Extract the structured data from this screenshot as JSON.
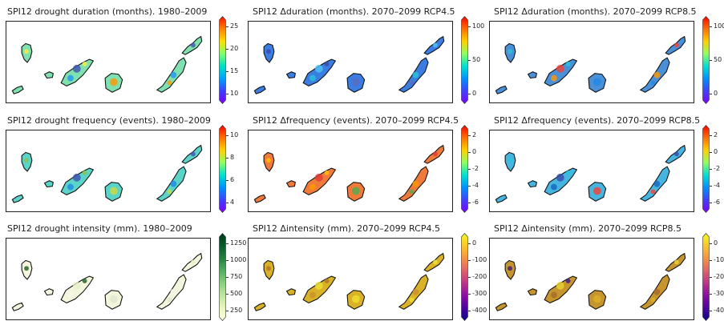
{
  "panels": [
    {
      "title": "SPI12 drought duration (months). 1980–2009",
      "ticks": [
        "25",
        "20",
        "15",
        "10"
      ],
      "cmap": "rainbow",
      "bg": "#7fe0b0",
      "spots": [
        "#3f51b5",
        "#2196f3",
        "#ffeb3b",
        "#ff9800"
      ]
    },
    {
      "title": "SPI12 Δduration (months). 2070–2099 RCP4.5",
      "ticks": [
        "100",
        "50",
        "0"
      ],
      "cmap": "rainbowp",
      "bg": "#3b7de0",
      "spots": [
        "#4fc3f7",
        "#26c6da",
        "#3949ab",
        "#5c6bc0"
      ]
    },
    {
      "title": "SPI12 Δduration (months). 2070–2099 RCP8.5",
      "ticks": [
        "100",
        "50",
        "0"
      ],
      "cmap": "rainbowp",
      "bg": "#4a90d9",
      "spots": [
        "#f44336",
        "#ff9800",
        "#26c6da",
        "#1e88e5"
      ]
    },
    {
      "title": "SPI12 drought frequency (events). 1980–2009",
      "ticks": [
        "10",
        "8",
        "6",
        "4"
      ],
      "cmap": "rainbowp",
      "bg": "#5ad3c9",
      "spots": [
        "#3f51b5",
        "#1e88e5",
        "#8bc34a",
        "#cddc39"
      ]
    },
    {
      "title": "SPI12 Δfrequency (events). 2070–2099 RCP4.5",
      "ticks": [
        "2",
        "0",
        "-2",
        "-4",
        "-6"
      ],
      "cmap": "rainbowp",
      "bg": "#f07a3a",
      "spots": [
        "#e53935",
        "#ff9800",
        "#ffc107",
        "#4caf50"
      ]
    },
    {
      "title": "SPI12 Δfrequency (events). 2070–2099 RCP8.5",
      "ticks": [
        "2",
        "0",
        "-2",
        "-4",
        "-6"
      ],
      "cmap": "rainbowp",
      "bg": "#46b6e0",
      "spots": [
        "#3949ab",
        "#1565c0",
        "#26c6da",
        "#f44336"
      ]
    },
    {
      "title": "SPI12 drought intensity (mm). 1980–2009",
      "ticks": [
        "1250",
        "1000",
        "750",
        "500",
        "250"
      ],
      "cmap": "greens",
      "bg": "#f3f5dc",
      "spots": [
        "#e8f0c8",
        "#f8f8e8",
        "#1b5e20",
        "#dfead0"
      ]
    },
    {
      "title": "SPI12 Δintensity (mm). 2070–2099 RCP4.5",
      "ticks": [
        "0",
        "-100",
        "-200",
        "-300",
        "-400"
      ],
      "cmap": "plasma",
      "bg": "#d9b227",
      "spots": [
        "#ede13a",
        "#c9902f",
        "#b0702e",
        "#f0e030"
      ]
    },
    {
      "title": "SPI12 Δintensity (mm). 2070–2099 RCP8.5",
      "ticks": [
        "0",
        "-100",
        "-200",
        "-300",
        "-400"
      ],
      "cmap": "plasma",
      "bg": "#c7952e",
      "spots": [
        "#e8d432",
        "#a86a2a",
        "#3a1a7a",
        "#d9b227"
      ]
    }
  ]
}
